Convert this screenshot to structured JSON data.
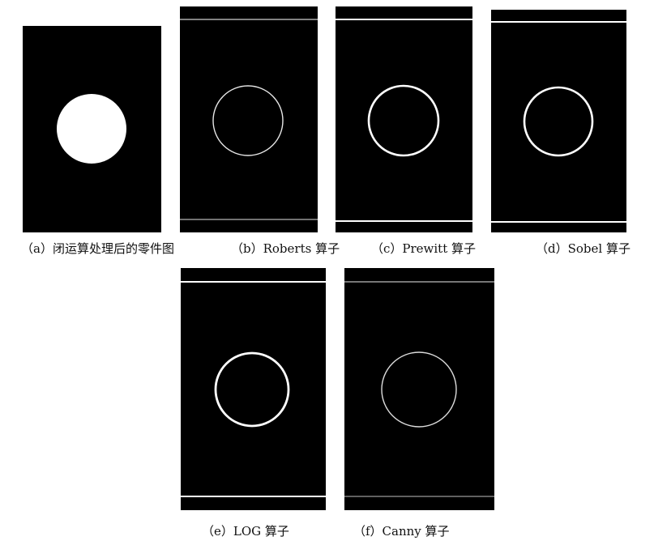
{
  "figures": [
    {
      "id": "a",
      "caption": "（a）闭运算处理后的零件图"
    },
    {
      "id": "b",
      "caption": "（b）Roberts 算子"
    },
    {
      "id": "c",
      "caption": "（c）Prewitt 算子"
    },
    {
      "id": "d",
      "caption": "（d）Sobel 算子"
    },
    {
      "id": "e",
      "caption": "（e）LOG 算子"
    },
    {
      "id": "f",
      "caption": "（f）Canny 算子"
    }
  ]
}
